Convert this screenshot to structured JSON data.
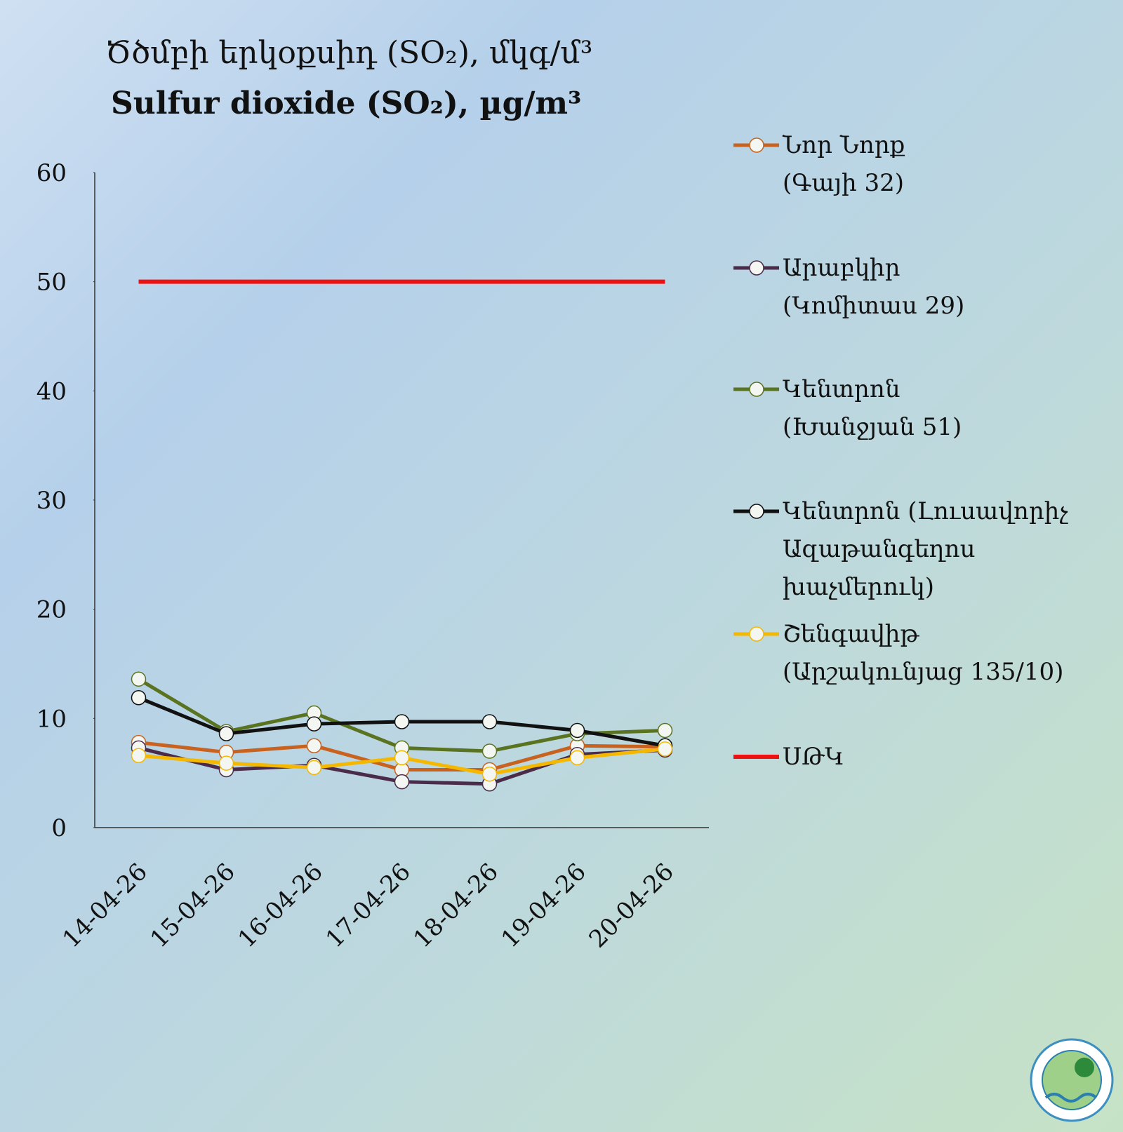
{
  "chart_data": {
    "type": "line",
    "title": "Ծծմբի երկօքսիդ (SO₂), մկգ/մ³",
    "subtitle": "Sulfur dioxide (SO₂), µg/m³",
    "categories": [
      "14-04-26",
      "15-04-26",
      "16-04-26",
      "17-04-26",
      "18-04-26",
      "19-04-26",
      "20-04-26"
    ],
    "series": [
      {
        "name": "Նոր Նորք\n(Գայի 32)",
        "color": "#c8621e",
        "markers": true,
        "values": [
          7.8,
          6.9,
          7.5,
          5.3,
          5.3,
          7.5,
          7.4
        ]
      },
      {
        "name": "Արաբկիր\n(Կոմիտաս 29)",
        "color": "#4a2c4a",
        "markers": true,
        "values": [
          7.3,
          5.3,
          5.7,
          4.2,
          4.0,
          6.7,
          7.1
        ]
      },
      {
        "name": "Կենտրոն\n(Խանջյան 51)",
        "color": "#5a7320",
        "markers": true,
        "values": [
          13.6,
          8.8,
          10.5,
          7.3,
          7.0,
          8.6,
          8.9
        ]
      },
      {
        "name": "Կենտրոն (Լուսավորիչ\nԱզաթանգեղոս\nխաչմերուկ)",
        "color": "#111111",
        "markers": true,
        "values": [
          11.9,
          8.6,
          9.5,
          9.7,
          9.7,
          8.9,
          7.5
        ]
      },
      {
        "name": "Շենգավիթ\n(Արշակունյաց 135/10)",
        "color": "#f5b800",
        "markers": true,
        "values": [
          6.6,
          5.9,
          5.5,
          6.4,
          4.9,
          6.4,
          7.2
        ]
      },
      {
        "name": "ՍԹԿ",
        "color": "#ee1111",
        "markers": false,
        "values": [
          50,
          50,
          50,
          50,
          50,
          50,
          50
        ]
      }
    ],
    "ylim": [
      0,
      60
    ],
    "yticks": [
      0,
      10,
      20,
      30,
      40,
      50,
      60
    ],
    "grid": false,
    "legend": "right"
  }
}
